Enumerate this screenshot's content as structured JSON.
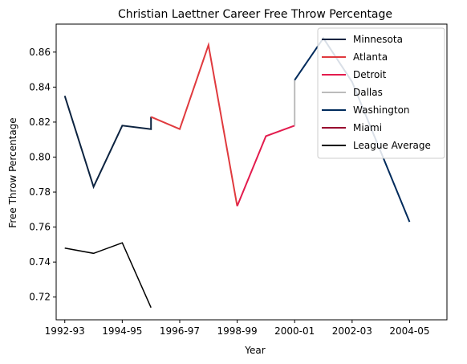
{
  "chart_data": {
    "type": "line",
    "title": "Christian Laettner Career Free Throw Percentage",
    "xlabel": "Year",
    "ylabel": "Free Throw Percentage",
    "x_ticks": [
      "1992-93",
      "1994-95",
      "1996-97",
      "1998-99",
      "2000-01",
      "2002-03",
      "2004-05"
    ],
    "y_ticks": [
      "0.72",
      "0.74",
      "0.76",
      "0.78",
      "0.80",
      "0.82",
      "0.84",
      "0.86"
    ],
    "xlim": [
      1991.7,
      2005.3
    ],
    "ylim": [
      0.707,
      0.876
    ],
    "grid": false,
    "legend_position": "top-right",
    "series": [
      {
        "name": "Minnesota",
        "color": "#0c2340",
        "x": [
          1992,
          1993,
          1994,
          1995,
          1995
        ],
        "y": [
          0.835,
          0.783,
          0.818,
          0.816,
          0.823
        ]
      },
      {
        "name": "Atlanta",
        "color": "#e03a3e",
        "x": [
          1995,
          1996,
          1997,
          1998
        ],
        "y": [
          0.823,
          0.816,
          0.864,
          0.772
        ]
      },
      {
        "name": "Detroit",
        "color": "#e31b4d",
        "x": [
          1998,
          1999,
          2000
        ],
        "y": [
          0.772,
          0.812,
          0.818
        ]
      },
      {
        "name": "Dallas",
        "color": "#bbbbbb",
        "x": [
          2000,
          2000
        ],
        "y": [
          0.818,
          0.844
        ]
      },
      {
        "name": "Washington",
        "color": "#002b5c",
        "x": [
          2000,
          2001,
          2002,
          2003,
          2004
        ],
        "y": [
          0.844,
          0.868,
          0.843,
          0.803,
          0.763
        ]
      },
      {
        "name": "Miami",
        "color": "#98002e",
        "x": [],
        "y": []
      },
      {
        "name": "League Average",
        "color": "#000000",
        "x": [
          1992,
          1993,
          1994,
          1995
        ],
        "y": [
          0.748,
          0.745,
          0.751,
          0.714
        ]
      }
    ]
  }
}
